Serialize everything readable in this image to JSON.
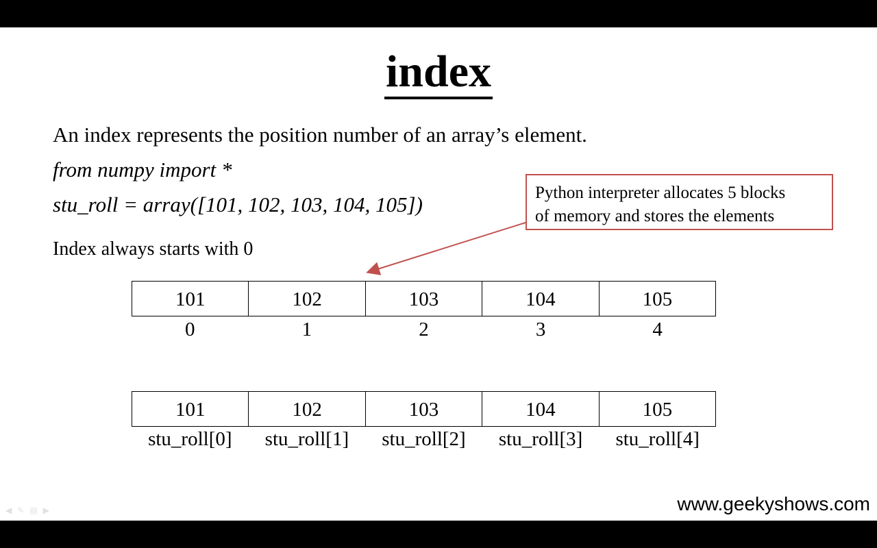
{
  "title": "index",
  "lines": {
    "intro": "An index represents the position number of an array’s element.",
    "import": "from numpy import *",
    "assign": "stu_roll = array([101, 102, 103, 104, 105])",
    "note": "Index always starts with 0"
  },
  "callout": {
    "line1": "Python interpreter allocates 5 blocks",
    "line2": "of memory and stores the elements"
  },
  "array1": {
    "values": [
      "101",
      "102",
      "103",
      "104",
      "105"
    ],
    "indices": [
      "0",
      "1",
      "2",
      "3",
      "4"
    ]
  },
  "array2": {
    "values": [
      "101",
      "102",
      "103",
      "104",
      "105"
    ],
    "labels": [
      "stu_roll[0]",
      "stu_roll[1]",
      "stu_roll[2]",
      "stu_roll[3]",
      "stu_roll[4]"
    ]
  },
  "watermark": "www.geekyshows.com",
  "colors": {
    "callout_border": "#c0504d",
    "arrow": "#c0504d"
  },
  "icons": [
    "prev-arrow-icon",
    "pen-icon",
    "menu-icon",
    "next-arrow-icon"
  ]
}
